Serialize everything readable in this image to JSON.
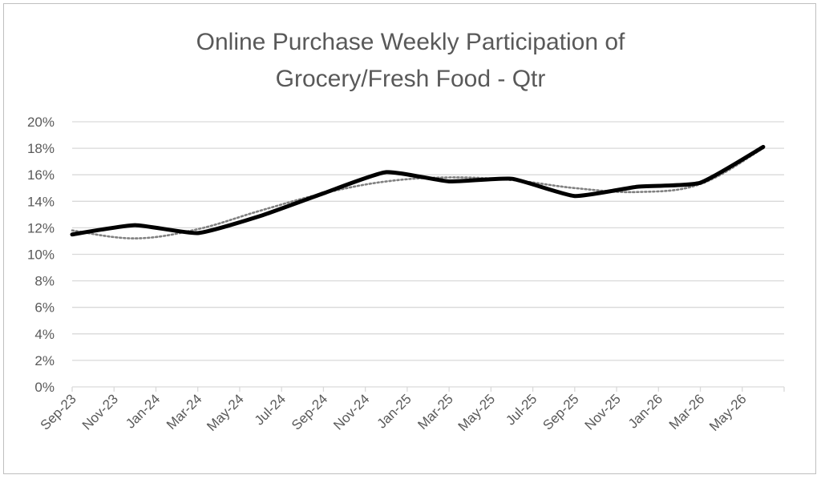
{
  "chart_data": {
    "type": "line",
    "title_lines": [
      "Online Purchase Weekly Participation of",
      "Grocery/Fresh Food - Qtr"
    ],
    "xlabel": "",
    "ylabel": "",
    "x_tick_labels": [
      "Sep-23",
      "Nov-23",
      "Jan-24",
      "Mar-24",
      "May-24",
      "Jul-24",
      "Sep-24",
      "Nov-24",
      "Jan-25",
      "Mar-25",
      "May-25",
      "Jul-25",
      "Sep-25",
      "Nov-25",
      "Jan-26",
      "Mar-26",
      "May-26"
    ],
    "y_tick_labels": [
      "0%",
      "2%",
      "4%",
      "6%",
      "8%",
      "10%",
      "12%",
      "14%",
      "16%",
      "18%",
      "20%"
    ],
    "ylim": [
      0,
      20
    ],
    "y_unit": "%",
    "grid": true,
    "legend": "none",
    "series": [
      {
        "style": "solid-thick",
        "color": "#000000",
        "x": [
          "Sep-23",
          "Dec-23",
          "Mar-24",
          "Jun-24",
          "Sep-24",
          "Dec-24",
          "Mar-25",
          "Jun-25",
          "Sep-25",
          "Dec-25",
          "Mar-26",
          "Jun-26"
        ],
        "values": [
          11.5,
          12.2,
          11.6,
          12.9,
          14.6,
          16.2,
          15.5,
          15.7,
          14.4,
          15.1,
          15.4,
          18.1
        ]
      },
      {
        "style": "dotted-trend",
        "color": "#808080",
        "x": [
          "Sep-23",
          "Dec-23",
          "Mar-24",
          "Jun-24",
          "Sep-24",
          "Dec-24",
          "Mar-25",
          "Jun-25",
          "Sep-25",
          "Dec-25",
          "Mar-26",
          "Jun-26"
        ],
        "values": [
          11.8,
          11.2,
          11.9,
          13.3,
          14.6,
          15.5,
          15.8,
          15.6,
          15.0,
          14.7,
          15.3,
          18.0
        ]
      }
    ]
  }
}
